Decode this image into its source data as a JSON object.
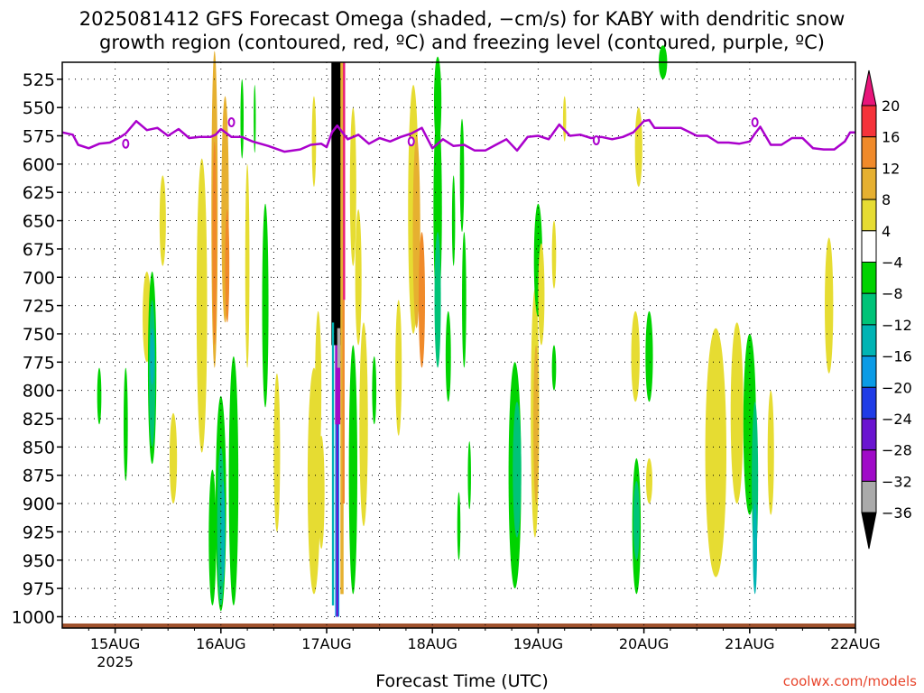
{
  "title": "2025081412 GFS Forecast Omega (shaded, −cm/s) for KABY with dendritic snow\ngrowth region (contoured, red, ºC) and freezing level (contoured, purple, ºC)",
  "credit": "coolwx.com/models",
  "chart_data": {
    "type": "heatmap",
    "title": "2025081412 GFS Forecast Omega (shaded, −cm/s) for KABY with dendritic snow growth region (contoured, red, ºC) and freezing level (contoured, purple, ºC)",
    "xlabel": "Forecast Time (UTC)",
    "x_ticks": [
      "15AUG",
      "16AUG",
      "17AUG",
      "18AUG",
      "19AUG",
      "20AUG",
      "21AUG",
      "22AUG"
    ],
    "x_year_label": "2025",
    "xlim_days": [
      14.5,
      22.0
    ],
    "y_ticks": [
      525,
      550,
      575,
      600,
      625,
      650,
      675,
      700,
      725,
      750,
      775,
      800,
      825,
      850,
      875,
      900,
      925,
      950,
      975,
      1000
    ],
    "ylim_hPa": [
      1010,
      510
    ],
    "grid": true,
    "colorbar": {
      "labels": [
        "20",
        "16",
        "12",
        "8",
        "4",
        "−4",
        "−8",
        "−12",
        "−16",
        "−20",
        "−24",
        "−28",
        "−32",
        "−36"
      ],
      "bins": [
        {
          "min": 20,
          "max": 24,
          "color": "#e8157a"
        },
        {
          "min": 16,
          "max": 20,
          "color": "#f5333a"
        },
        {
          "min": 12,
          "max": 16,
          "color": "#f08a2a"
        },
        {
          "min": 8,
          "max": 12,
          "color": "#e6b030"
        },
        {
          "min": 4,
          "max": 8,
          "color": "#e6dc32"
        },
        {
          "min": -4,
          "max": 4,
          "color": "#ffffff"
        },
        {
          "min": -8,
          "max": -4,
          "color": "#00d300"
        },
        {
          "min": -12,
          "max": -8,
          "color": "#00c378"
        },
        {
          "min": -16,
          "max": -12,
          "color": "#00b4b4"
        },
        {
          "min": -20,
          "max": -16,
          "color": "#0a9be6"
        },
        {
          "min": -24,
          "max": -20,
          "color": "#1f3ce6"
        },
        {
          "min": -28,
          "max": -24,
          "color": "#6a14d0"
        },
        {
          "min": -32,
          "max": -28,
          "color": "#a00ac8"
        },
        {
          "min": -36,
          "max": -32,
          "color": "#aaaaaa"
        },
        {
          "min": -40,
          "max": -36,
          "color": "#000000"
        }
      ]
    },
    "freezing_level_series": {
      "color": "#aa00cc",
      "x_day": [
        14.5,
        14.6,
        14.65,
        14.75,
        14.85,
        14.95,
        15.05,
        15.1,
        15.2,
        15.3,
        15.4,
        15.5,
        15.6,
        15.7,
        15.8,
        15.9,
        15.95,
        16.0,
        16.1,
        16.2,
        16.3,
        16.45,
        16.6,
        16.75,
        16.85,
        16.95,
        17.0,
        17.05,
        17.1,
        17.2,
        17.3,
        17.4,
        17.5,
        17.6,
        17.7,
        17.8,
        17.9,
        18.0,
        18.1,
        18.2,
        18.3,
        18.4,
        18.5,
        18.6,
        18.7,
        18.8,
        18.9,
        19.0,
        19.1,
        19.2,
        19.3,
        19.4,
        19.5,
        19.6,
        19.7,
        19.8,
        19.9,
        20.0,
        20.05,
        20.1,
        20.2,
        20.35,
        20.5,
        20.6,
        20.7,
        20.8,
        20.9,
        21.0,
        21.05,
        21.1,
        21.2,
        21.3,
        21.4,
        21.5,
        21.6,
        21.7,
        21.8,
        21.9,
        21.95,
        22.0
      ],
      "y_hPa": [
        572,
        574,
        583,
        586,
        582,
        581,
        576,
        573,
        562,
        570,
        568,
        575,
        569,
        577,
        576,
        576,
        574,
        569,
        576,
        576,
        580,
        584,
        589,
        587,
        583,
        582,
        585,
        572,
        566,
        578,
        574,
        582,
        577,
        580,
        576,
        573,
        568,
        586,
        578,
        584,
        583,
        588,
        588,
        583,
        578,
        588,
        576,
        575,
        578,
        565,
        575,
        574,
        577,
        576,
        578,
        576,
        572,
        562,
        561,
        568,
        568,
        568,
        575,
        575,
        581,
        581,
        582,
        580,
        573,
        567,
        583,
        583,
        577,
        577,
        586,
        587,
        587,
        580,
        572,
        572
      ]
    },
    "surface_pressure_hPa": 1006,
    "surface_color": "#a0522d"
  }
}
